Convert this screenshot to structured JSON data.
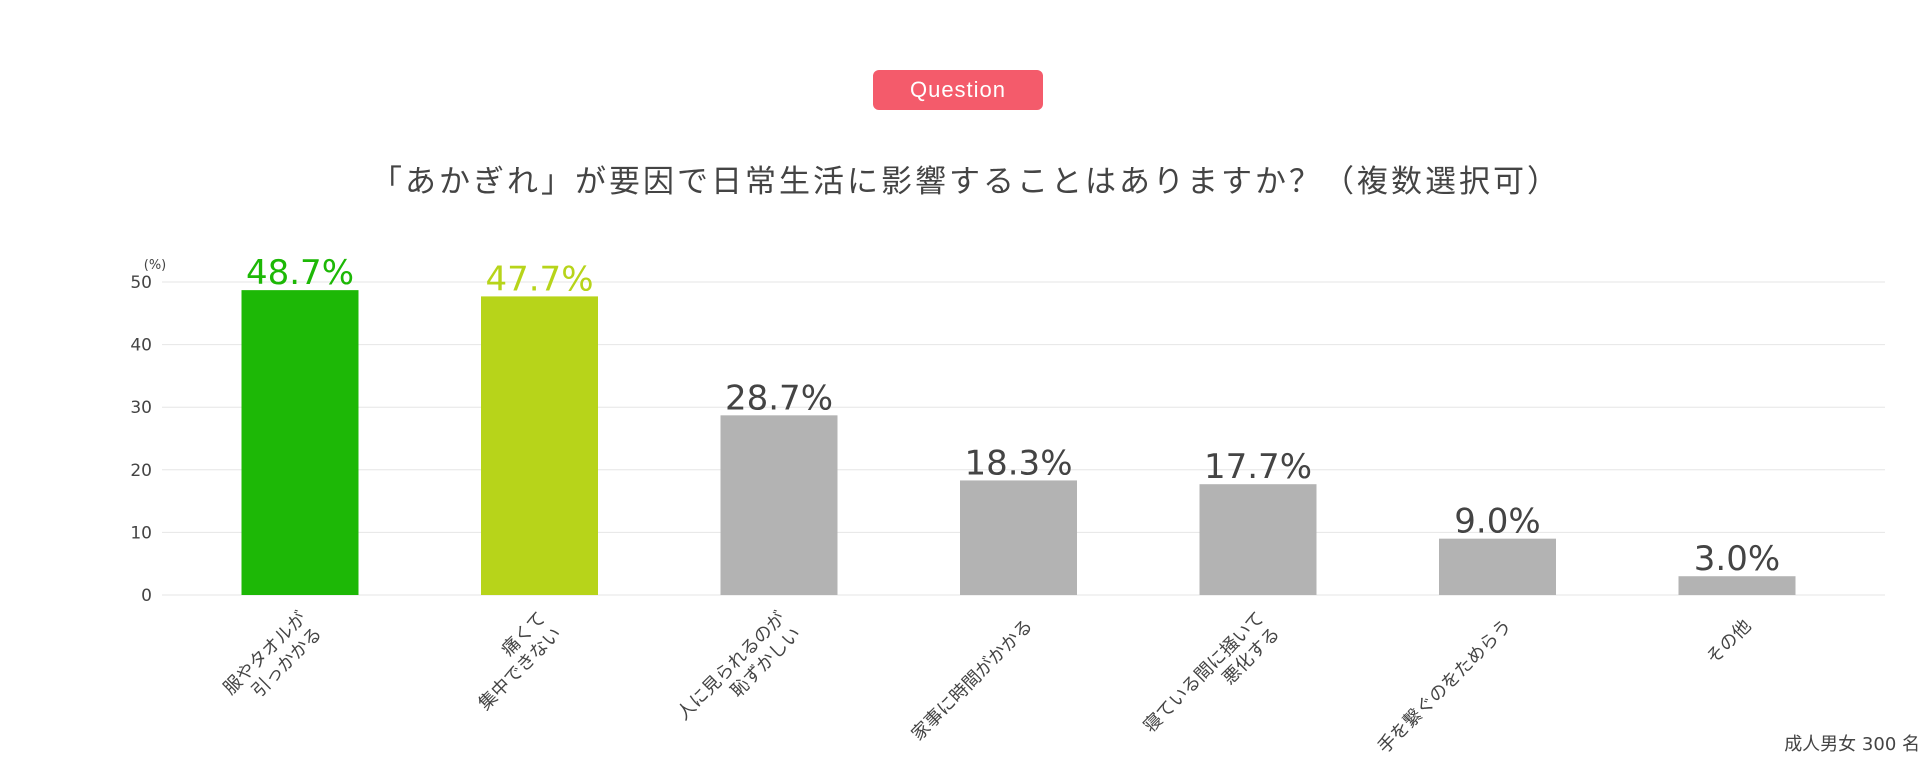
{
  "badge": "Question",
  "title": "「あかぎれ」が要因で日常生活に影響することはありますか？（複数選択可）",
  "note": "成人男女 300 名",
  "chart_data": {
    "type": "bar",
    "title": "「あかぎれ」が要因で日常生活に影響することはありますか？（複数選択可）",
    "ylabel": "(%)",
    "xlabel": "",
    "ylim": [
      0,
      50
    ],
    "yticks": [
      0,
      10,
      20,
      30,
      40,
      50
    ],
    "grid": true,
    "categories": [
      [
        "服やタオルが",
        "引っかかる"
      ],
      [
        "痛くて",
        "集中できない"
      ],
      [
        "人に見られるのが",
        "恥ずかしい"
      ],
      [
        "家事に時間がかかる"
      ],
      [
        "寝ている間に掻いて",
        "悪化する"
      ],
      [
        "手を繋ぐのをためらう"
      ],
      [
        "その他"
      ]
    ],
    "values": [
      48.7,
      47.7,
      28.7,
      18.3,
      17.7,
      9.0,
      3.0
    ],
    "data_labels": [
      "48.7%",
      "47.7%",
      "28.7%",
      "18.3%",
      "17.7%",
      "9.0%",
      "3.0%"
    ],
    "colors": [
      "#1db806",
      "#b7d41a",
      "#b3b3b3",
      "#b3b3b3",
      "#b3b3b3",
      "#b3b3b3",
      "#b3b3b3"
    ],
    "label_colors": [
      "#1db806",
      "#b7d41a",
      "#444444",
      "#444444",
      "#444444",
      "#444444",
      "#444444"
    ]
  }
}
